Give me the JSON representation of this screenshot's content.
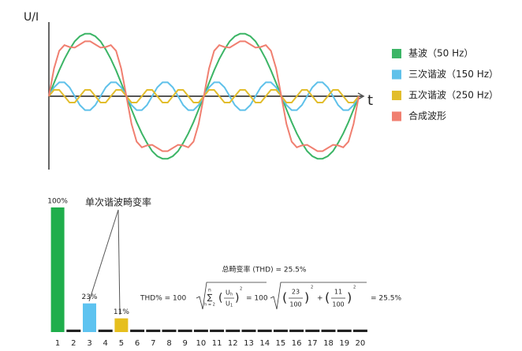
{
  "chart_data": [
    {
      "type": "line",
      "y_label": "U/I",
      "x_label": "t",
      "x": [
        0,
        12,
        24,
        36,
        48,
        60,
        72,
        84,
        96,
        108,
        120,
        132,
        144,
        156,
        168,
        180,
        192,
        204,
        216,
        228,
        240,
        252,
        264,
        276,
        288,
        300,
        312,
        324,
        336,
        348,
        360,
        372,
        384,
        396,
        408,
        420,
        432,
        444,
        456,
        468,
        480,
        492,
        504,
        516,
        528,
        540,
        552,
        564,
        576,
        588,
        600,
        612,
        624,
        636,
        648,
        660,
        672,
        684,
        696,
        708,
        720
      ],
      "xlim": [
        0,
        720
      ],
      "ylim": [
        -1.1,
        1.1
      ],
      "series": [
        {
          "name": "基波（50 Hz）",
          "color": "#3cb566",
          "values": [
            0,
            0.21,
            0.41,
            0.59,
            0.74,
            0.87,
            0.95,
            0.99,
            0.99,
            0.95,
            0.87,
            0.74,
            0.59,
            0.41,
            0.21,
            0,
            -0.21,
            -0.41,
            -0.59,
            -0.74,
            -0.87,
            -0.95,
            -0.99,
            -0.99,
            -0.95,
            -0.87,
            -0.74,
            -0.59,
            -0.41,
            -0.21,
            0,
            0.21,
            0.41,
            0.59,
            0.74,
            0.87,
            0.95,
            0.99,
            0.99,
            0.95,
            0.87,
            0.74,
            0.59,
            0.41,
            0.21,
            0,
            -0.21,
            -0.41,
            -0.59,
            -0.74,
            -0.87,
            -0.95,
            -0.99,
            -0.99,
            -0.95,
            -0.87,
            -0.74,
            -0.59,
            -0.41,
            -0.21,
            0
          ]
        },
        {
          "name": "三次谐波（150 Hz）",
          "color": "#5fc1ea",
          "values": [
            0,
            0.14,
            0.22,
            0.22,
            0.14,
            0,
            -0.14,
            -0.22,
            -0.22,
            -0.14,
            0,
            0.14,
            0.22,
            0.22,
            0.14,
            0,
            -0.14,
            -0.22,
            -0.22,
            -0.14,
            0,
            0.14,
            0.22,
            0.22,
            0.14,
            0,
            -0.14,
            -0.22,
            -0.22,
            -0.14,
            0,
            0.14,
            0.22,
            0.22,
            0.14,
            0,
            -0.14,
            -0.22,
            -0.22,
            -0.14,
            0,
            0.14,
            0.22,
            0.22,
            0.14,
            0,
            -0.14,
            -0.22,
            -0.22,
            -0.14,
            0,
            0.14,
            0.22,
            0.22,
            0.14,
            0,
            -0.14,
            -0.22,
            -0.22,
            -0.14,
            0
          ]
        },
        {
          "name": "五次谐波（250 Hz）",
          "color": "#e2bd2c",
          "values": [
            0,
            0.1,
            0.1,
            0,
            -0.1,
            -0.1,
            0,
            0.1,
            0.1,
            0,
            -0.1,
            -0.1,
            0,
            0.1,
            0.1,
            0,
            -0.1,
            -0.1,
            0,
            0.1,
            0.1,
            0,
            -0.1,
            -0.1,
            0,
            0.1,
            0.1,
            0,
            -0.1,
            -0.1,
            0,
            0.1,
            0.1,
            0,
            -0.1,
            -0.1,
            0,
            0.1,
            0.1,
            0,
            -0.1,
            -0.1,
            0,
            0.1,
            0.1,
            0,
            -0.1,
            -0.1,
            0,
            0.1,
            0.1,
            0,
            -0.1,
            -0.1,
            0,
            0.1,
            0.1,
            0,
            -0.1,
            -0.1,
            0
          ]
        },
        {
          "name": "合成波形",
          "color": "#f07f70",
          "values": [
            0,
            0.44,
            0.72,
            0.81,
            0.78,
            0.77,
            0.82,
            0.87,
            0.87,
            0.82,
            0.77,
            0.78,
            0.81,
            0.72,
            0.44,
            0,
            -0.44,
            -0.72,
            -0.81,
            -0.78,
            -0.77,
            -0.82,
            -0.87,
            -0.87,
            -0.82,
            -0.77,
            -0.78,
            -0.81,
            -0.72,
            -0.44,
            0,
            0.44,
            0.72,
            0.81,
            0.78,
            0.77,
            0.82,
            0.87,
            0.87,
            0.82,
            0.77,
            0.78,
            0.81,
            0.72,
            0.44,
            0,
            -0.44,
            -0.72,
            -0.81,
            -0.78,
            -0.77,
            -0.82,
            -0.87,
            -0.87,
            -0.82,
            -0.77,
            -0.78,
            -0.81,
            -0.72,
            -0.44,
            0
          ]
        }
      ]
    },
    {
      "type": "bar",
      "categories": [
        "1",
        "2",
        "3",
        "4",
        "5",
        "6",
        "7",
        "8",
        "9",
        "10",
        "11",
        "12",
        "13",
        "14",
        "15",
        "16",
        "17",
        "18",
        "19",
        "20"
      ],
      "values": [
        100,
        2,
        23,
        2,
        11,
        2,
        2,
        2,
        2,
        2,
        2,
        2,
        2,
        2,
        2,
        2,
        2,
        2,
        2,
        2
      ],
      "value_labels": [
        "100%",
        null,
        "23%",
        null,
        "11%",
        null,
        null,
        null,
        null,
        null,
        null,
        null,
        null,
        null,
        null,
        null,
        null,
        null,
        null,
        null
      ],
      "colors": [
        "#1fae4b",
        "#222222",
        "#5ec3f0",
        "#222222",
        "#e6bf1e",
        "#222222",
        "#222222",
        "#222222",
        "#222222",
        "#222222",
        "#222222",
        "#222222",
        "#222222",
        "#222222",
        "#222222",
        "#222222",
        "#222222",
        "#222222",
        "#222222",
        "#222222"
      ],
      "ylim": [
        0,
        100
      ],
      "annotation": "单次谐波畸变率",
      "formula": {
        "thd_line": "总畸变率 (THD) = 25.5%",
        "lhs": "THD% = 100",
        "sum": "∑",
        "sum_top": "n",
        "sum_bottom": "h = 2",
        "num": "U",
        "num_sub": "h",
        "den": "U",
        "den_sub": "1",
        "power": "2",
        "mid": "= 100",
        "t1_num": "23",
        "t1_den": "100",
        "plus": "+",
        "t2_num": "11",
        "t2_den": "100",
        "result": "= 25.5%"
      }
    }
  ]
}
